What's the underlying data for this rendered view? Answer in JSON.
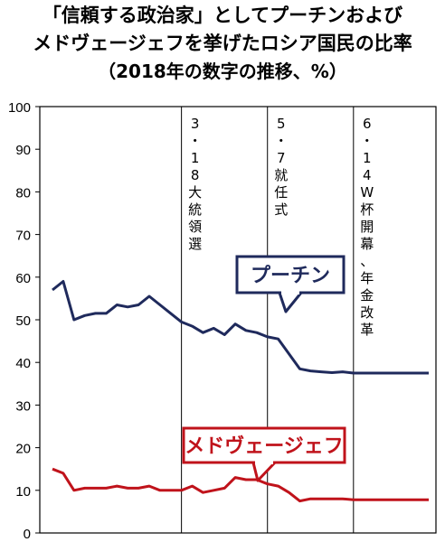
{
  "title": {
    "line1": "「信頼する政治家」としてプーチンおよび",
    "line2": "メドヴェージェフを挙げたロシア国民の比率",
    "line3": "（2018年の数字の推移、%）"
  },
  "colors": {
    "putin": "#1f2a5c",
    "medvedev": "#c0131b",
    "axis": "#000000"
  },
  "chart_data": {
    "type": "line",
    "ylim": [
      0,
      100
    ],
    "yticks": [
      "0",
      "10",
      "20",
      "30",
      "40",
      "50",
      "60",
      "70",
      "80",
      "90",
      "100"
    ],
    "xlim": [
      1,
      36
    ],
    "grid": false,
    "series": [
      {
        "name": "プーチン",
        "x": [
          1,
          2,
          3,
          4,
          5,
          6,
          7,
          8,
          9,
          10,
          11,
          12,
          13,
          14,
          15,
          16,
          17,
          18,
          19,
          20,
          21,
          22,
          23,
          24,
          25,
          26,
          27,
          28,
          29,
          30,
          31,
          32,
          33,
          34,
          35,
          36
        ],
        "values": [
          57,
          59,
          50,
          51,
          51.5,
          51.5,
          53.5,
          53,
          53.5,
          55.5,
          53.5,
          51.5,
          49.5,
          48.5,
          47,
          48,
          46.5,
          49,
          47.5,
          47,
          46,
          45.5,
          42,
          38.5,
          38,
          37.8,
          37.6,
          37.8,
          37.5,
          37.5,
          37.5,
          37.5,
          37.5,
          37.5,
          37.5,
          37.5
        ]
      },
      {
        "name": "メドヴェージェフ",
        "x": [
          1,
          2,
          3,
          4,
          5,
          6,
          7,
          8,
          9,
          10,
          11,
          12,
          13,
          14,
          15,
          16,
          17,
          18,
          19,
          20,
          21,
          22,
          23,
          24,
          25,
          26,
          27,
          28,
          29,
          30,
          31,
          32,
          33,
          34,
          35,
          36
        ],
        "values": [
          15,
          14,
          10,
          10.5,
          10.5,
          10.5,
          11,
          10.5,
          10.5,
          11,
          10,
          10,
          10,
          11,
          9.5,
          10,
          10.5,
          13,
          12.5,
          12.5,
          11.5,
          11,
          9.5,
          7.5,
          8,
          8,
          8,
          8,
          7.8,
          7.8,
          7.8,
          7.8,
          7.8,
          7.8,
          7.8,
          7.8
        ]
      }
    ],
    "annotations": [
      {
        "at_x": 13,
        "label": "3・18 大統領選"
      },
      {
        "at_x": 21,
        "label": "5・7 就任式"
      },
      {
        "at_x": 29,
        "label": "6・14 W杯開幕、年金改革"
      }
    ],
    "callouts": [
      {
        "series": "プーチン",
        "text": "プーチン"
      },
      {
        "series": "メドヴェージェフ",
        "text": "メドヴェージェフ"
      }
    ]
  }
}
